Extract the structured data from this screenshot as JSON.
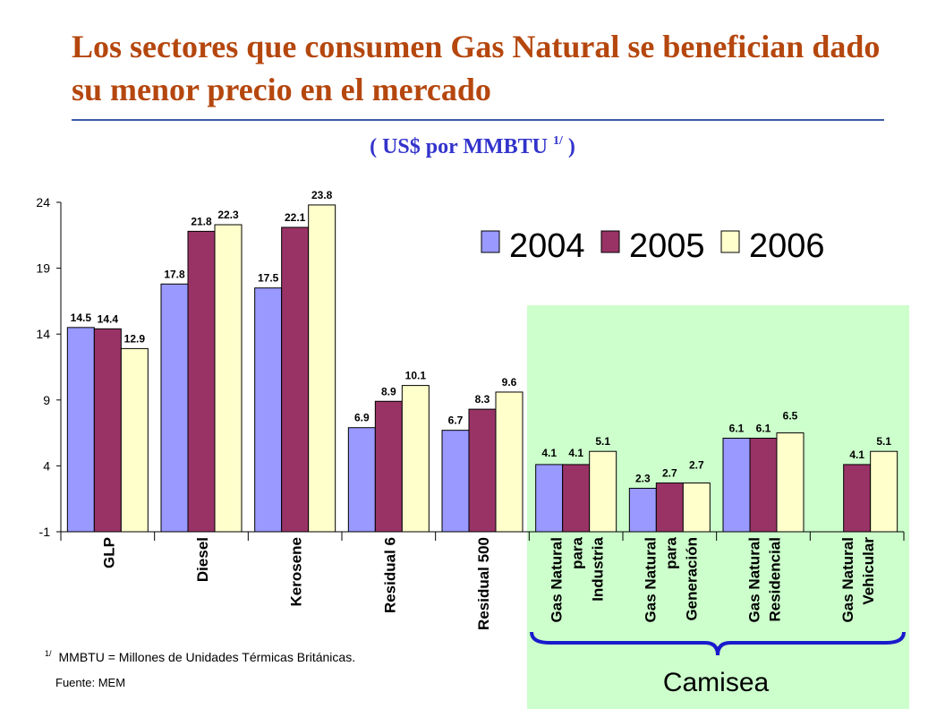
{
  "page": {
    "title": "Los sectores que consumen Gas Natural se benefician dado su menor precio en el mercado",
    "subtitle_main": "( US$ por MMBTU ",
    "subtitle_sup": "1/",
    "subtitle_end": " )",
    "footnote_mark": "1/",
    "footnote_text": "MMBTU = Millones de Unidades Térmicas Británicas.",
    "source": "Fuente: MEM",
    "bracket_label": "Camisea"
  },
  "colors": {
    "s2004": "#9999FF",
    "s2005": "#993366",
    "s2006": "#FFFFCC",
    "camisea_bg": "#CCFFCC",
    "title": "#B5470E",
    "subtitle": "#3333CC",
    "bracket": "#1A1ACC"
  },
  "chart_data": {
    "type": "bar",
    "categories": [
      [
        "GLP"
      ],
      [
        "Diesel"
      ],
      [
        "Kerosene"
      ],
      [
        "Residual 6"
      ],
      [
        "Residual 500"
      ],
      [
        "Gas Natural",
        "para",
        "Industria"
      ],
      [
        "Gas Natural",
        "para",
        "Generación"
      ],
      [
        "Gas Natural",
        "Residencial"
      ],
      [
        "Gas Natural",
        "Vehicular"
      ]
    ],
    "series": [
      {
        "name": "2004",
        "values": [
          14.5,
          17.8,
          17.5,
          6.9,
          6.7,
          4.1,
          2.3,
          6.1,
          null
        ],
        "labels": [
          "14.5",
          "17.8",
          "17.5",
          "6.9",
          "6.7",
          "4.1",
          "2.3",
          "6.1",
          null
        ]
      },
      {
        "name": "2005",
        "values": [
          14.4,
          21.8,
          22.1,
          8.9,
          8.3,
          4.1,
          2.7,
          6.1,
          4.1
        ],
        "labels": [
          "14.4",
          "21.8",
          "22.1",
          "8.9",
          "8.3",
          "4.1",
          "2.7",
          "6.1",
          "4.1"
        ]
      },
      {
        "name": "2006",
        "values": [
          12.9,
          22.3,
          23.8,
          10.1,
          9.6,
          5.1,
          2.7,
          6.5,
          5.1
        ],
        "labels": [
          "12.9",
          "22.3",
          "23.8",
          "10.1",
          "9.6",
          "5.1",
          "2.7",
          "6.5",
          "5.1"
        ]
      }
    ],
    "yticks": [
      "24",
      "19",
      "14",
      "9",
      "4",
      "-1"
    ],
    "ylim": [
      -1,
      24
    ],
    "grid": false,
    "legend_position": "top-right",
    "highlighted_group": "Camisea"
  }
}
